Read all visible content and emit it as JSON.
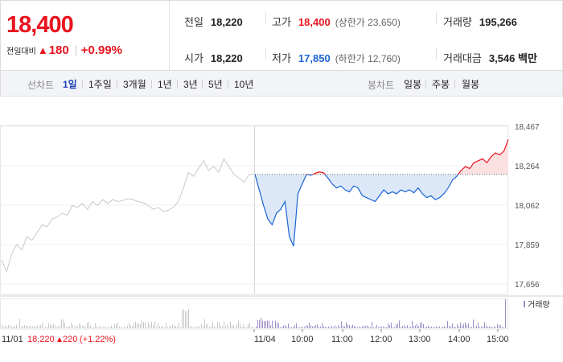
{
  "quote": {
    "current_price": "18,400",
    "change_label": "전일대비",
    "change_arrow": "▲",
    "change_value": "180",
    "change_rate": "+0.99%"
  },
  "stats": {
    "prev_close": {
      "label": "전일",
      "value": "18,220"
    },
    "open": {
      "label": "시가",
      "value": "18,220"
    },
    "high": {
      "label": "고가",
      "value": "18,400",
      "sub": "(상한가 23,650)"
    },
    "low": {
      "label": "저가",
      "value": "17,850",
      "sub": "(하한가 12,760)"
    },
    "volume": {
      "label": "거래량",
      "value": "195,266"
    },
    "amount": {
      "label": "거래대금",
      "value": "3,546 백만"
    }
  },
  "toolbar": {
    "line_chart_label": "선차트",
    "periods": [
      "1일",
      "1주일",
      "3개월",
      "1년",
      "3년",
      "5년",
      "10년"
    ],
    "active_period": "1일",
    "candle_chart_label": "봉차트",
    "candles": [
      "일봉",
      "주봉",
      "월봉"
    ]
  },
  "chart_labels": {
    "volume_legend": "거래량",
    "prev_day_date": "11/01",
    "prev_day_close": "18,220",
    "prev_day_arrow": "▲",
    "prev_day_change": "220",
    "prev_day_rate": "(+1.22%)"
  },
  "colors": {
    "up": "#e8141e",
    "down": "#1c64d6",
    "prev_day_line": "#c8c8c8",
    "volume_today": "#9d8ec9"
  },
  "chart_data": {
    "type": "line",
    "yticks": [
      18467,
      18264,
      18062,
      17859,
      17656
    ],
    "ylim": [
      17656,
      18467
    ],
    "base_price": 18220,
    "xticks": [
      "11/04",
      "10:00",
      "11:00",
      "12:00",
      "13:00",
      "14:00",
      "15:00"
    ],
    "series": [
      {
        "name": "11/01",
        "values": [
          17780,
          17720,
          17810,
          17860,
          17830,
          17900,
          17880,
          17920,
          17960,
          17950,
          17990,
          18000,
          18020,
          18010,
          18060,
          18050,
          18070,
          18040,
          18080,
          18060,
          18090,
          18070,
          18090,
          18080,
          18085,
          18095,
          18090,
          18080,
          18075,
          18060,
          18040,
          18050,
          18030,
          18035,
          18050,
          18080,
          18150,
          18230,
          18210,
          18250,
          18290,
          18240,
          18260,
          18230,
          18300,
          18260,
          18220,
          18200,
          18180,
          18220,
          18220
        ]
      },
      {
        "name": "11/04",
        "values": [
          18220,
          18140,
          18060,
          17990,
          17960,
          18020,
          18040,
          18080,
          17900,
          17850,
          18120,
          18170,
          18220,
          18215,
          18225,
          18232,
          18228,
          18200,
          18170,
          18150,
          18160,
          18140,
          18130,
          18160,
          18150,
          18110,
          18100,
          18090,
          18080,
          18110,
          18140,
          18120,
          18130,
          18120,
          18140,
          18130,
          18140,
          18125,
          18150,
          18120,
          18100,
          18110,
          18090,
          18100,
          18120,
          18150,
          18190,
          18210,
          18240,
          18260,
          18250,
          18280,
          18290,
          18300,
          18280,
          18310,
          18330,
          18320,
          18340,
          18400
        ]
      }
    ]
  }
}
